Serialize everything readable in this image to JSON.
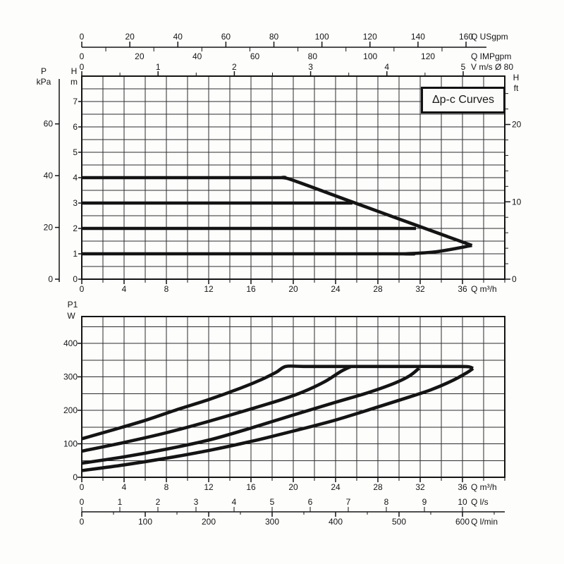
{
  "title_box": {
    "label": "Δp-c Curves"
  },
  "colors": {
    "ink": "#141414",
    "grid": "#2c2c2c",
    "paper": "#fdfdfc"
  },
  "chart_data": [
    {
      "id": "head-chart",
      "type": "line",
      "title": "Δp-c Curves",
      "x_axes": {
        "q_m3h": {
          "label": "Q m³/h",
          "ticks": [
            0,
            4,
            8,
            12,
            16,
            20,
            24,
            28,
            32,
            36
          ],
          "minor_step": 2,
          "range": [
            0,
            40
          ]
        },
        "q_usgpm": {
          "label": "Q USgpm",
          "ticks": [
            0,
            20,
            40,
            60,
            80,
            100,
            120,
            140,
            160
          ],
          "minor_step": 10,
          "m3h_per_unit": 0.2271
        },
        "q_impgpm": {
          "label": "Q IMPgpm",
          "ticks": [
            0,
            20,
            40,
            60,
            80,
            100,
            120
          ],
          "m3h_per_unit": 0.2728
        },
        "v_ms": {
          "label": "V m/s Ø 80",
          "ticks": [
            0,
            1,
            2,
            3,
            4,
            5
          ],
          "minor_step": 0.5,
          "m3h_per_unit": 7.213
        }
      },
      "y_axes": {
        "h_m": {
          "label_top": "H",
          "label_unit": "m",
          "ticks": [
            0,
            1,
            2,
            3,
            4,
            5,
            6,
            7
          ],
          "minor_step": 0.5,
          "range": [
            0,
            8
          ]
        },
        "p_kpa": {
          "label_top": "P",
          "label_unit": "kPa",
          "ticks": [
            0,
            20,
            40,
            60
          ],
          "m_per_unit": 0.10197
        },
        "h_ft": {
          "label_top": "H",
          "label_unit": "ft",
          "ticks": [
            0,
            10,
            20
          ],
          "minor_step": 2,
          "m_per_unit": 0.3048
        }
      },
      "series": [
        {
          "name": "setpoint-4m-and-max-speed-curve",
          "points_q_h": [
            [
              0,
              4
            ],
            [
              17.5,
              4
            ],
            [
              19,
              4
            ],
            [
              20.3,
              3.85
            ],
            [
              25.2,
              3.1
            ],
            [
              31,
              2.22
            ],
            [
              36.9,
              1.33
            ]
          ]
        },
        {
          "name": "setpoint-3m",
          "points_q_h": [
            [
              0,
              3
            ],
            [
              25.6,
              3
            ]
          ]
        },
        {
          "name": "setpoint-2m",
          "points_q_h": [
            [
              0,
              2
            ],
            [
              31.6,
              2
            ]
          ]
        },
        {
          "name": "setpoint-1m-min-curve",
          "points_q_h": [
            [
              0,
              1
            ],
            [
              29,
              1
            ],
            [
              30.5,
              1
            ],
            [
              33.5,
              1.08
            ],
            [
              36.9,
              1.33
            ]
          ]
        }
      ]
    },
    {
      "id": "power-chart",
      "type": "line",
      "y_axis": {
        "label_line1": "P1",
        "label_line2": "W",
        "ticks": [
          0,
          100,
          200,
          300,
          400
        ],
        "minor_step": 50,
        "range": [
          0,
          480
        ]
      },
      "x_axes": {
        "q_m3h": {
          "label": "Q m³/h",
          "ticks": [
            0,
            4,
            8,
            12,
            16,
            20,
            24,
            28,
            32,
            36
          ],
          "minor_step": 2,
          "range": [
            0,
            40
          ]
        },
        "q_ls": {
          "label": "Q l/s",
          "ticks": [
            0,
            1,
            2,
            3,
            4,
            5,
            6,
            7,
            8,
            9,
            10
          ],
          "m3h_per_unit": 3.6
        },
        "q_lmin": {
          "label": "Q l/min",
          "ticks": [
            0,
            100,
            200,
            300,
            400,
            500,
            600
          ],
          "minor_step": 50,
          "m3h_per_unit": 0.06
        }
      },
      "series": [
        {
          "name": "p1-at-setpoint-4m",
          "points_q_w": [
            [
              0,
              115
            ],
            [
              3,
              142
            ],
            [
              6,
              170
            ],
            [
              9,
              202
            ],
            [
              12,
              232
            ],
            [
              15,
              266
            ],
            [
              17,
              292
            ],
            [
              18.4,
              314
            ],
            [
              19.3,
              331
            ],
            [
              21,
              331
            ],
            [
              26,
              331
            ],
            [
              31,
              331
            ],
            [
              35.5,
              331
            ],
            [
              36.6,
              330
            ],
            [
              37,
              325
            ]
          ]
        },
        {
          "name": "p1-at-setpoint-3m",
          "points_q_w": [
            [
              0,
              78
            ],
            [
              4,
              104
            ],
            [
              8,
              133
            ],
            [
              12,
              167
            ],
            [
              16,
              204
            ],
            [
              19,
              233
            ],
            [
              21,
              256
            ],
            [
              23,
              286
            ],
            [
              24.5,
              316
            ],
            [
              25.4,
              330
            ]
          ]
        },
        {
          "name": "p1-at-setpoint-2m",
          "points_q_w": [
            [
              0,
              42
            ],
            [
              4,
              61
            ],
            [
              8,
              84
            ],
            [
              12,
              111
            ],
            [
              16,
              147
            ],
            [
              20,
              186
            ],
            [
              24,
              224
            ],
            [
              27,
              252
            ],
            [
              29.5,
              280
            ],
            [
              31,
              303
            ],
            [
              31.9,
              326
            ]
          ]
        },
        {
          "name": "p1-at-setpoint-1m",
          "points_q_w": [
            [
              0,
              20
            ],
            [
              4,
              37
            ],
            [
              8,
              57
            ],
            [
              12,
              80
            ],
            [
              16,
              107
            ],
            [
              20,
              138
            ],
            [
              24,
              171
            ],
            [
              28,
              210
            ],
            [
              31,
              240
            ],
            [
              33,
              261
            ],
            [
              35,
              288
            ],
            [
              36.4,
              312
            ],
            [
              37,
              325
            ]
          ]
        }
      ]
    }
  ]
}
